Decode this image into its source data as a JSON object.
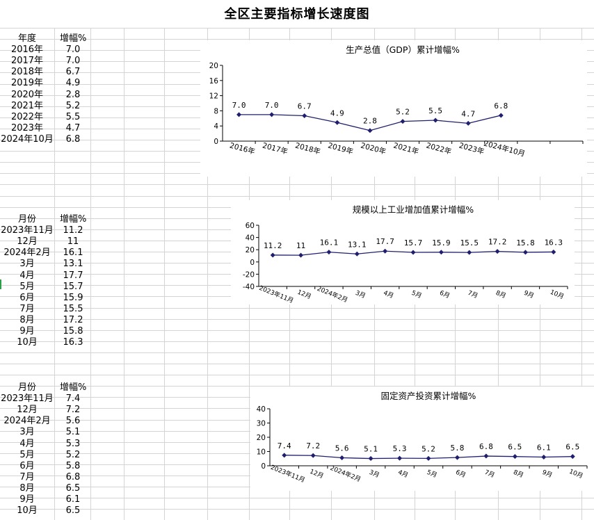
{
  "page_title": "全区主要指标增长速度图",
  "tables": [
    {
      "head": [
        "年度",
        "增幅%"
      ],
      "rows": [
        [
          "2016年",
          "7.0"
        ],
        [
          "2017年",
          "7.0"
        ],
        [
          "2018年",
          "6.7"
        ],
        [
          "2019年",
          "4.9"
        ],
        [
          "2020年",
          "2.8"
        ],
        [
          "2021年",
          "5.2"
        ],
        [
          "2022年",
          "5.5"
        ],
        [
          "2023年",
          "4.7"
        ],
        [
          "2024年10月",
          "6.8"
        ]
      ]
    },
    {
      "head": [
        "月份",
        "增幅%"
      ],
      "rows": [
        [
          "2023年11月",
          "11.2"
        ],
        [
          "12月",
          "11"
        ],
        [
          "2024年2月",
          "16.1"
        ],
        [
          "3月",
          "13.1"
        ],
        [
          "4月",
          "17.7"
        ],
        [
          "5月",
          "15.7"
        ],
        [
          "6月",
          "15.9"
        ],
        [
          "7月",
          "15.5"
        ],
        [
          "8月",
          "17.2"
        ],
        [
          "9月",
          "15.8"
        ],
        [
          "10月",
          "16.3"
        ]
      ]
    },
    {
      "head": [
        "月份",
        "增幅%"
      ],
      "rows": [
        [
          "2023年11月",
          "7.4"
        ],
        [
          "12月",
          "7.2"
        ],
        [
          "2024年2月",
          "5.6"
        ],
        [
          "3月",
          "5.1"
        ],
        [
          "4月",
          "5.3"
        ],
        [
          "5月",
          "5.2"
        ],
        [
          "6月",
          "5.8"
        ],
        [
          "7月",
          "6.8"
        ],
        [
          "8月",
          "6.5"
        ],
        [
          "9月",
          "6.1"
        ],
        [
          "10月",
          "6.5"
        ]
      ]
    }
  ],
  "chart_data": [
    {
      "type": "line",
      "title": "生产总值（GDP）累计增幅%",
      "categories": [
        "2016年",
        "2017年",
        "2018年",
        "2019年",
        "2020年",
        "2021年",
        "2022年",
        "2023年",
        "2024年10月"
      ],
      "values": [
        7.0,
        7.0,
        6.7,
        4.9,
        2.8,
        5.2,
        5.5,
        4.7,
        6.8
      ],
      "labels": [
        "7.0",
        "7.0",
        "6.7",
        "4.9",
        "2.8",
        "5.2",
        "5.5",
        "4.7",
        "6.8"
      ],
      "ylim": [
        0,
        20
      ],
      "yticks": [
        0,
        4,
        8,
        12,
        16,
        20
      ],
      "ytick_labels": [
        "0",
        "4",
        "8",
        "12",
        "16",
        "20"
      ],
      "n_slots": 11,
      "grid": false,
      "color": "#1F1F6E"
    },
    {
      "type": "line",
      "title": "规模以上工业增加值累计增幅%",
      "categories": [
        "2023年11月",
        "12月",
        "2024年2月",
        "3月",
        "4月",
        "5月",
        "6月",
        "7月",
        "8月",
        "9月",
        "10月"
      ],
      "values": [
        11.2,
        11,
        16.1,
        13.1,
        17.7,
        15.7,
        15.9,
        15.5,
        17.2,
        15.8,
        16.3
      ],
      "labels": [
        "11.2",
        "11",
        "16.1",
        "13.1",
        "17.7",
        "15.7",
        "15.9",
        "15.5",
        "17.2",
        "15.8",
        "16.3"
      ],
      "ylim": [
        -40,
        60
      ],
      "yticks": [
        -40,
        -20,
        0,
        20,
        40,
        60
      ],
      "ytick_labels": [
        "-40",
        "-20",
        "0",
        "20",
        "40",
        "60"
      ],
      "n_slots": 11,
      "grid": false,
      "color": "#1F1F6E"
    },
    {
      "type": "line",
      "title": "固定资产投资累计增幅%",
      "categories": [
        "2023年11月",
        "12月",
        "2024年2月",
        "3月",
        "4月",
        "5月",
        "6月",
        "7月",
        "8月",
        "9月",
        "10月"
      ],
      "values": [
        7.4,
        7.2,
        5.6,
        5.1,
        5.3,
        5.2,
        5.8,
        6.8,
        6.5,
        6.1,
        6.5
      ],
      "labels": [
        "7.4",
        "7.2",
        "5.6",
        "5.1",
        "5.3",
        "5.2",
        "5.8",
        "6.8",
        "6.5",
        "6.1",
        "6.5"
      ],
      "ylim": [
        0,
        40
      ],
      "yticks": [
        0,
        10,
        20,
        30,
        40
      ],
      "ytick_labels": [
        "0",
        "10",
        "20",
        "30",
        "40"
      ],
      "n_slots": 11,
      "grid": false,
      "color": "#1F1F6E"
    }
  ]
}
